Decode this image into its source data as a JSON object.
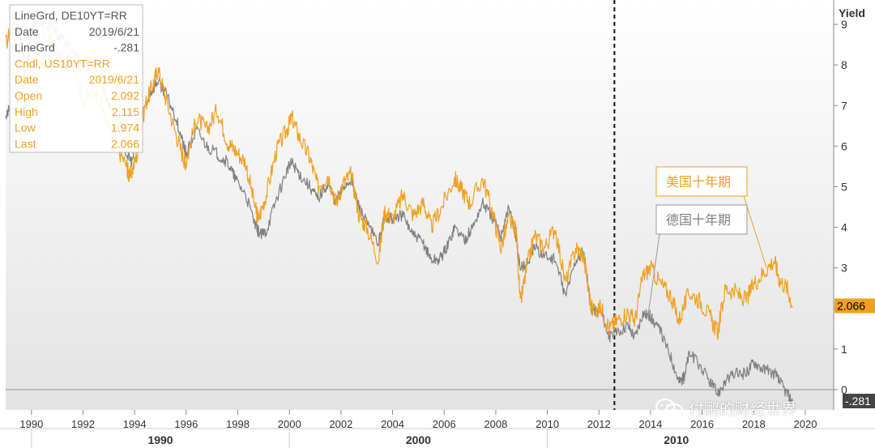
{
  "chart_data": {
    "type": "line",
    "ylabel": "Yield",
    "ylim": [
      -0.5,
      9.6
    ],
    "xlim": [
      1989.0,
      2021.1
    ],
    "x_ticks": [
      "1990",
      "1992",
      "1994",
      "1996",
      "1998",
      "2000",
      "2002",
      "2004",
      "2006",
      "2008",
      "2010",
      "2012",
      "2014",
      "2016",
      "2018",
      "2020"
    ],
    "decade_labels": [
      "1990",
      "2000",
      "2010"
    ],
    "y_ticks": [
      "0",
      "1",
      "2",
      "3",
      "4",
      "5",
      "6",
      "7",
      "8",
      "9"
    ],
    "vertical_marker_x": 2012.6,
    "grid": false,
    "series": [
      {
        "name": "美国十年期",
        "color": "#f0a020",
        "points": [
          [
            1989.0,
            8.5
          ],
          [
            1989.4,
            9.2
          ],
          [
            1989.7,
            8.2
          ],
          [
            1990.0,
            8.0
          ],
          [
            1990.4,
            8.6
          ],
          [
            1990.8,
            8.6
          ],
          [
            1991.2,
            8.0
          ],
          [
            1991.6,
            8.1
          ],
          [
            1992.0,
            7.1
          ],
          [
            1992.5,
            7.4
          ],
          [
            1992.9,
            6.6
          ],
          [
            1993.3,
            6.0
          ],
          [
            1993.7,
            5.5
          ],
          [
            1993.8,
            5.2
          ],
          [
            1994.1,
            5.8
          ],
          [
            1994.4,
            7.0
          ],
          [
            1994.7,
            7.5
          ],
          [
            1994.9,
            7.9
          ],
          [
            1995.2,
            7.2
          ],
          [
            1995.6,
            6.3
          ],
          [
            1995.9,
            5.7
          ],
          [
            1996.0,
            5.6
          ],
          [
            1996.4,
            6.7
          ],
          [
            1996.8,
            6.4
          ],
          [
            1997.2,
            6.9
          ],
          [
            1997.6,
            6.1
          ],
          [
            1997.9,
            5.9
          ],
          [
            1998.3,
            5.6
          ],
          [
            1998.7,
            4.4
          ],
          [
            1998.8,
            4.2
          ],
          [
            1999.1,
            4.8
          ],
          [
            1999.5,
            5.9
          ],
          [
            1999.9,
            6.4
          ],
          [
            2000.1,
            6.7
          ],
          [
            2000.4,
            6.2
          ],
          [
            2000.8,
            5.7
          ],
          [
            2001.1,
            5.0
          ],
          [
            2001.5,
            5.3
          ],
          [
            2001.8,
            4.6
          ],
          [
            2002.1,
            5.1
          ],
          [
            2002.4,
            5.3
          ],
          [
            2002.7,
            4.3
          ],
          [
            2003.0,
            4.0
          ],
          [
            2003.45,
            3.2
          ],
          [
            2003.7,
            4.4
          ],
          [
            2004.0,
            4.2
          ],
          [
            2004.4,
            4.8
          ],
          [
            2004.8,
            4.3
          ],
          [
            2005.2,
            4.6
          ],
          [
            2005.5,
            4.0
          ],
          [
            2005.9,
            4.5
          ],
          [
            2006.4,
            5.2
          ],
          [
            2006.7,
            4.9
          ],
          [
            2007.0,
            4.6
          ],
          [
            2007.5,
            5.2
          ],
          [
            2007.9,
            4.3
          ],
          [
            2008.2,
            3.5
          ],
          [
            2008.5,
            4.2
          ],
          [
            2008.8,
            3.9
          ],
          [
            2008.95,
            2.1
          ],
          [
            2009.2,
            3.0
          ],
          [
            2009.5,
            3.8
          ],
          [
            2009.9,
            3.5
          ],
          [
            2010.3,
            4.0
          ],
          [
            2010.7,
            2.6
          ],
          [
            2011.1,
            3.5
          ],
          [
            2011.4,
            3.3
          ],
          [
            2011.7,
            2.0
          ],
          [
            2012.1,
            2.0
          ],
          [
            2012.4,
            1.5
          ],
          [
            2012.7,
            1.7
          ],
          [
            2013.1,
            1.9
          ],
          [
            2013.4,
            1.7
          ],
          [
            2013.7,
            2.8
          ],
          [
            2014.0,
            3.0
          ],
          [
            2014.4,
            2.6
          ],
          [
            2014.8,
            2.3
          ],
          [
            2015.1,
            1.7
          ],
          [
            2015.5,
            2.4
          ],
          [
            2015.9,
            2.2
          ],
          [
            2016.3,
            1.8
          ],
          [
            2016.6,
            1.4
          ],
          [
            2016.9,
            2.5
          ],
          [
            2017.3,
            2.4
          ],
          [
            2017.7,
            2.2
          ],
          [
            2018.0,
            2.6
          ],
          [
            2018.4,
            2.9
          ],
          [
            2018.8,
            3.2
          ],
          [
            2019.0,
            2.7
          ],
          [
            2019.3,
            2.5
          ],
          [
            2019.5,
            2.066
          ]
        ]
      },
      {
        "name": "德国十年期",
        "color": "#808080",
        "points": [
          [
            1989.0,
            6.8
          ],
          [
            1989.4,
            7.0
          ],
          [
            1989.7,
            7.5
          ],
          [
            1990.0,
            8.8
          ],
          [
            1990.4,
            9.0
          ],
          [
            1990.8,
            8.9
          ],
          [
            1991.2,
            8.6
          ],
          [
            1991.6,
            8.4
          ],
          [
            1992.0,
            8.0
          ],
          [
            1992.5,
            7.9
          ],
          [
            1992.9,
            7.2
          ],
          [
            1993.3,
            6.6
          ],
          [
            1993.7,
            5.8
          ],
          [
            1993.9,
            5.6
          ],
          [
            1994.2,
            6.6
          ],
          [
            1994.6,
            7.3
          ],
          [
            1994.9,
            7.6
          ],
          [
            1995.2,
            7.3
          ],
          [
            1995.6,
            6.7
          ],
          [
            1995.9,
            6.0
          ],
          [
            1996.0,
            5.8
          ],
          [
            1996.4,
            6.4
          ],
          [
            1996.8,
            6.0
          ],
          [
            1997.2,
            5.8
          ],
          [
            1997.6,
            5.6
          ],
          [
            1997.9,
            5.2
          ],
          [
            1998.3,
            4.8
          ],
          [
            1998.7,
            4.0
          ],
          [
            1998.9,
            3.8
          ],
          [
            1999.1,
            3.9
          ],
          [
            1999.5,
            4.7
          ],
          [
            1999.9,
            5.4
          ],
          [
            2000.1,
            5.6
          ],
          [
            2000.4,
            5.3
          ],
          [
            2000.8,
            5.0
          ],
          [
            2001.1,
            4.7
          ],
          [
            2001.5,
            5.1
          ],
          [
            2001.8,
            4.6
          ],
          [
            2002.1,
            5.0
          ],
          [
            2002.4,
            5.2
          ],
          [
            2002.7,
            4.5
          ],
          [
            2003.0,
            4.1
          ],
          [
            2003.45,
            3.6
          ],
          [
            2003.7,
            4.3
          ],
          [
            2004.0,
            4.2
          ],
          [
            2004.4,
            4.3
          ],
          [
            2004.8,
            3.8
          ],
          [
            2005.2,
            3.6
          ],
          [
            2005.5,
            3.2
          ],
          [
            2005.8,
            3.2
          ],
          [
            2006.1,
            3.5
          ],
          [
            2006.4,
            4.0
          ],
          [
            2006.8,
            3.7
          ],
          [
            2007.1,
            4.0
          ],
          [
            2007.5,
            4.6
          ],
          [
            2007.9,
            4.2
          ],
          [
            2008.2,
            3.8
          ],
          [
            2008.5,
            4.5
          ],
          [
            2008.8,
            3.7
          ],
          [
            2008.95,
            3.0
          ],
          [
            2009.2,
            3.1
          ],
          [
            2009.5,
            3.5
          ],
          [
            2009.9,
            3.3
          ],
          [
            2010.3,
            3.2
          ],
          [
            2010.7,
            2.3
          ],
          [
            2011.1,
            3.2
          ],
          [
            2011.4,
            3.4
          ],
          [
            2011.7,
            2.0
          ],
          [
            2012.1,
            1.9
          ],
          [
            2012.4,
            1.3
          ],
          [
            2012.7,
            1.4
          ],
          [
            2013.1,
            1.6
          ],
          [
            2013.4,
            1.3
          ],
          [
            2013.7,
            1.9
          ],
          [
            2014.0,
            1.8
          ],
          [
            2014.4,
            1.4
          ],
          [
            2014.8,
            0.8
          ],
          [
            2015.1,
            0.2
          ],
          [
            2015.3,
            0.3
          ],
          [
            2015.5,
            0.9
          ],
          [
            2015.9,
            0.6
          ],
          [
            2016.3,
            0.2
          ],
          [
            2016.6,
            -0.1
          ],
          [
            2016.9,
            0.2
          ],
          [
            2017.3,
            0.4
          ],
          [
            2017.7,
            0.4
          ],
          [
            2018.0,
            0.7
          ],
          [
            2018.4,
            0.5
          ],
          [
            2018.8,
            0.4
          ],
          [
            2019.0,
            0.2
          ],
          [
            2019.3,
            -0.1
          ],
          [
            2019.5,
            -0.281
          ]
        ]
      }
    ],
    "annotations": [
      {
        "text": "美国十年期",
        "color": "#f0a020",
        "target": [
          2018.5,
          3.0
        ]
      },
      {
        "text": "德国十年期",
        "color": "#808080",
        "target": [
          2013.9,
          1.8
        ]
      }
    ],
    "badges": [
      {
        "value": "2.066",
        "y": 2.066,
        "bg": "#f0a020",
        "fg": "#000000"
      },
      {
        "value": "-.281",
        "y": -0.281,
        "bg": "#444444",
        "fg": "#ffffff"
      }
    ],
    "tooltip": {
      "lines": [
        {
          "label": "LineGrd, DE10YT=RR",
          "value": "",
          "color": "grey"
        },
        {
          "label": "Date",
          "value": "2019/6/21",
          "color": "grey"
        },
        {
          "label": "LineGrd",
          "value": "-.281",
          "color": "grey"
        },
        {
          "label": "Cndl, US10YT=RR",
          "value": "",
          "color": "orange"
        },
        {
          "label": "Date",
          "value": "2019/6/21",
          "color": "orange"
        },
        {
          "label": "Open",
          "value": "2.092",
          "color": "orange"
        },
        {
          "label": "High",
          "value": "2.115",
          "color": "orange"
        },
        {
          "label": "Low",
          "value": "1.974",
          "color": "orange"
        },
        {
          "label": "Last",
          "value": "2.066",
          "color": "orange"
        }
      ]
    }
  },
  "watermark": {
    "text": "付鹏的财经世界",
    "icon": "wechat-icon"
  }
}
